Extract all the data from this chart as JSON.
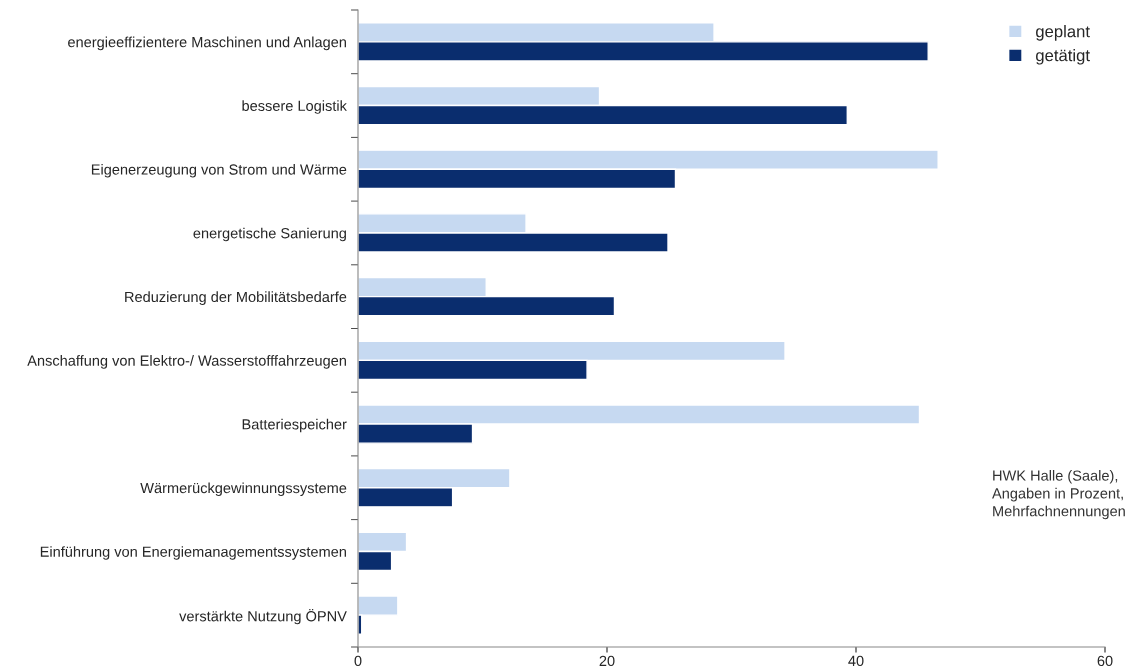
{
  "chart_data": {
    "type": "bar",
    "orientation": "horizontal",
    "categories": [
      "energieeffizientere Maschinen und Anlagen",
      "bessere Logistik",
      "Eigenerzeugung von Strom und Wärme",
      "energetische Sanierung",
      "Reduzierung der Mobilitätsbedarfe",
      "Anschaffung von Elektro-/ Wasserstofffahrzeugen",
      "Batteriespeicher",
      "Wärmerückgewinnungssysteme",
      "Einführung von Energiemanagementssystemen",
      "verstärkte Nutzung ÖPNV"
    ],
    "series": [
      {
        "name": "geplant",
        "color": "#c6d9f1",
        "values": [
          28.6,
          19.4,
          46.6,
          13.5,
          10.3,
          34.3,
          45.1,
          12.2,
          3.9,
          3.2
        ]
      },
      {
        "name": "getätigt",
        "color": "#0a2d6e",
        "values": [
          45.8,
          39.3,
          25.5,
          24.9,
          20.6,
          18.4,
          9.2,
          7.6,
          2.7,
          0.3
        ]
      }
    ],
    "xlim": [
      0,
      60
    ],
    "xticks": [
      0,
      20,
      40,
      60
    ],
    "grid": false,
    "legend": "top right",
    "annotations": [
      "HWK Halle (Saale),\nAngaben in Prozent,\nMehrfachnennungen"
    ]
  }
}
